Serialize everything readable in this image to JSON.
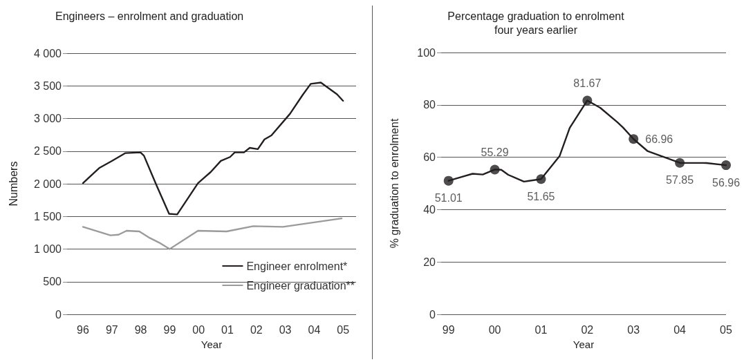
{
  "chart_data": [
    {
      "type": "line",
      "title": "Engineers – enrolment and graduation",
      "xlabel": "Year",
      "ylabel": "Numbers",
      "xlim": [
        1995.45,
        2005.45
      ],
      "xticks": [
        {
          "value": 1996,
          "label": "96"
        },
        {
          "value": 1997,
          "label": "97"
        },
        {
          "value": 1998,
          "label": "98"
        },
        {
          "value": 1999,
          "label": "99"
        },
        {
          "value": 2000,
          "label": "00"
        },
        {
          "value": 2001,
          "label": "01"
        },
        {
          "value": 2002,
          "label": "02"
        },
        {
          "value": 2003,
          "label": "03"
        },
        {
          "value": 2004,
          "label": "04"
        },
        {
          "value": 2005,
          "label": "05"
        }
      ],
      "ylim": [
        0,
        4000
      ],
      "yticks": [
        0,
        500,
        {
          "value": 1000,
          "label": "1 000"
        },
        {
          "value": 1500,
          "label": "1 500"
        },
        {
          "value": 2000,
          "label": "2 000"
        },
        {
          "value": 2500,
          "label": "2 500"
        },
        {
          "value": 3000,
          "label": "3 000"
        },
        {
          "value": 3500,
          "label": "3 500"
        },
        {
          "value": 4000,
          "label": "4 000"
        }
      ],
      "grid": "y",
      "legend": "bottom right",
      "marker": "none",
      "line_style": "solid",
      "series": [
        {
          "name": "Engineer enrolment*",
          "color": "#231f20",
          "x": [
            1996,
            1996.56,
            1997,
            1997.47,
            1997.99,
            1998.11,
            1998.55,
            1998.98,
            1999.26,
            1999.98,
            2000.42,
            2000.77,
            2001.09,
            2001.25,
            2001.57,
            2001.77,
            2002.05,
            2002.28,
            2002.52,
            2003.16,
            2003.6,
            2003.88,
            2004.23,
            2004.79,
            2005
          ],
          "values": [
            2010,
            2240,
            2350,
            2470,
            2480,
            2430,
            1970,
            1540,
            1530,
            2010,
            2180,
            2350,
            2410,
            2480,
            2480,
            2550,
            2530,
            2680,
            2740,
            3070,
            3360,
            3530,
            3550,
            3370,
            3270
          ]
        },
        {
          "name": "Engineer graduation**",
          "color": "#9b9b9b",
          "x": [
            1996,
            1996.95,
            1997.23,
            1997.51,
            1997.95,
            1998.31,
            1998.63,
            1999,
            1999.98,
            2000.97,
            2001.89,
            2002.92,
            2004.95
          ],
          "values": [
            1340,
            1210,
            1220,
            1280,
            1270,
            1170,
            1100,
            1000,
            1280,
            1270,
            1350,
            1340,
            1470
          ]
        }
      ]
    },
    {
      "type": "line",
      "title": "Percentage graduation to enrolment\nfour years earlier",
      "xlabel": "Year",
      "ylabel": "% graduation to enrolment",
      "xlim": [
        1998.84,
        2005
      ],
      "xticks": [
        {
          "value": 1999,
          "label": "99"
        },
        {
          "value": 2000,
          "label": "00"
        },
        {
          "value": 2001,
          "label": "01"
        },
        {
          "value": 2002,
          "label": "02"
        },
        {
          "value": 2003,
          "label": "03"
        },
        {
          "value": 2004,
          "label": "04"
        },
        {
          "value": 2005,
          "label": "05"
        }
      ],
      "ylim": [
        0,
        100
      ],
      "yticks": [
        0,
        20,
        40,
        60,
        80,
        100
      ],
      "grid": "y",
      "legend": false,
      "line_style": "solid",
      "series": [
        {
          "color": "#231f20",
          "marker": "none",
          "x": [
            1999,
            1999.52,
            1999.74,
            2000,
            2000.14,
            2000.29,
            2000.63,
            2001,
            2001.4,
            2001.62,
            2002,
            2002.28,
            2002.65,
            2002.77,
            2003,
            2003.3,
            2004,
            2004.58,
            2005
          ],
          "values": [
            51.01,
            53.7,
            53.4,
            55.29,
            55.2,
            53.3,
            50.7,
            51.65,
            60.4,
            71.2,
            81.67,
            78.9,
            73.4,
            71.4,
            66.96,
            62.4,
            57.85,
            57.8,
            56.96
          ]
        },
        {
          "type": "scatter",
          "color": "#231f20",
          "marker": "circle",
          "x": [
            1999,
            2000,
            2001,
            2002,
            2003,
            2004,
            2005
          ],
          "values": [
            51.01,
            55.29,
            51.65,
            81.67,
            66.96,
            57.85,
            56.96
          ],
          "value_labels": [
            "51.01",
            "55.29",
            "51.65",
            "81.67",
            "66.96",
            "57.85",
            "56.96"
          ]
        }
      ]
    }
  ]
}
